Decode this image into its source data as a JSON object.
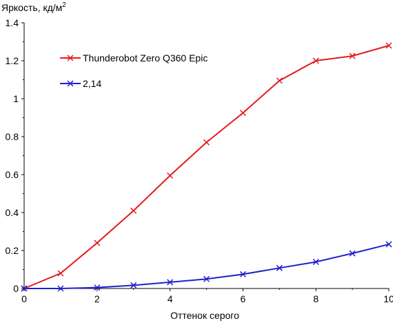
{
  "chart_data": {
    "type": "line",
    "ylabel": "Яркость, кд/м",
    "ylabel_sup": "2",
    "xlabel": "Оттенок серого",
    "xlim": [
      0,
      10
    ],
    "ylim": [
      0,
      1.4
    ],
    "x_ticks": [
      0,
      2,
      4,
      6,
      8,
      10
    ],
    "y_ticks": [
      0,
      0.2,
      0.4,
      0.6,
      0.8,
      1,
      1.2,
      1.4
    ],
    "x_tick_labels": [
      "0",
      "2",
      "4",
      "6",
      "8",
      "10"
    ],
    "y_tick_labels": [
      "0",
      "0.2",
      "0.4",
      "0.6",
      "0.8",
      "1",
      "1.2",
      "1.4"
    ],
    "grid": false,
    "legend_position": "top-left",
    "series": [
      {
        "name": "Thunderobot Zero Q360 Epic",
        "color": "#e41a1c",
        "marker": "x",
        "x": [
          0,
          1,
          2,
          3,
          4,
          5,
          6,
          7,
          8,
          9,
          10
        ],
        "values": [
          0,
          0.08,
          0.24,
          0.41,
          0.595,
          0.77,
          0.925,
          1.095,
          1.2,
          1.225,
          1.28
        ]
      },
      {
        "name": "2,14",
        "color": "#1f1fcf",
        "marker": "x",
        "x": [
          0,
          1,
          2,
          3,
          4,
          5,
          6,
          7,
          8,
          9,
          10
        ],
        "values": [
          0,
          0,
          0.005,
          0.017,
          0.033,
          0.05,
          0.075,
          0.108,
          0.14,
          0.185,
          0.233
        ]
      }
    ]
  }
}
